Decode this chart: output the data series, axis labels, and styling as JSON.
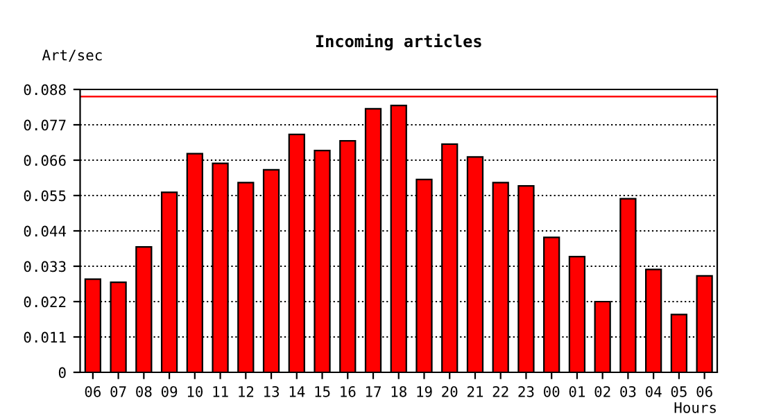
{
  "chart_data": {
    "type": "bar",
    "title": "Incoming articles",
    "ylabel": "Art/sec",
    "xlabel": "Hours",
    "categories": [
      "06",
      "07",
      "08",
      "09",
      "10",
      "11",
      "12",
      "13",
      "14",
      "15",
      "16",
      "17",
      "18",
      "19",
      "20",
      "21",
      "22",
      "23",
      "00",
      "01",
      "02",
      "03",
      "04",
      "05",
      "06"
    ],
    "series": [
      {
        "color": "#ff0000",
        "values": [
          0.029,
          0.028,
          0.039,
          0.056,
          0.068,
          0.065,
          0.059,
          0.063,
          0.074,
          0.069,
          0.072,
          0.082,
          0.083,
          0.06,
          0.071,
          0.067,
          0.059,
          0.058,
          0.042,
          0.036,
          0.022,
          0.054,
          0.032,
          0.018,
          0.03
        ]
      }
    ],
    "ylim": [
      0,
      0.088
    ],
    "yticks": [
      0,
      0.011,
      0.022,
      0.033,
      0.044,
      0.055,
      0.066,
      0.077,
      0.088
    ],
    "ref_lines": [
      {
        "axis": "y",
        "value": 0.0858,
        "color": "#ff0000",
        "line_style": "solid"
      }
    ],
    "grid": "y",
    "line_style": "dotted"
  }
}
